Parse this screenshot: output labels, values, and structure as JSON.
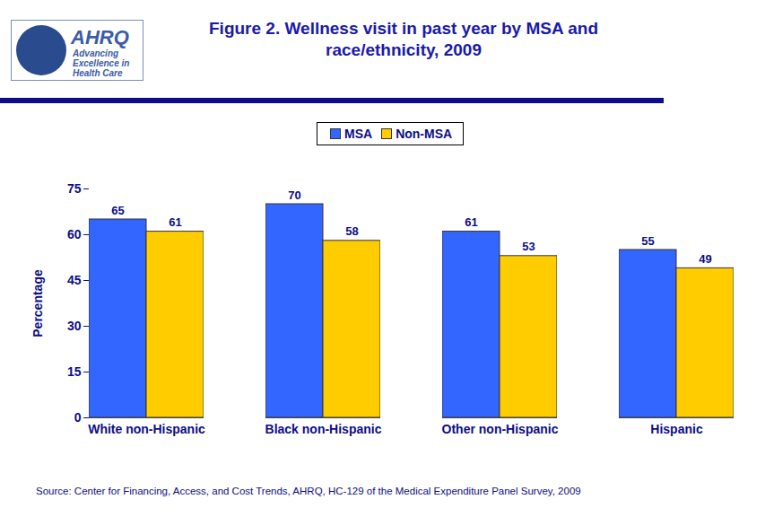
{
  "chart_data": {
    "type": "bar",
    "title": "Figure 2. Wellness visit in past year by MSA and race/ethnicity, 2009",
    "annotations": [
      "AHRQ",
      "Advancing Excellence in Health Care"
    ],
    "source": "Source: Center for Financing, Access, and Cost Trends, AHRQ, HC-129 of the Medical Expenditure Panel Survey,  2009",
    "categories": [
      "White non-Hispanic",
      "Black non-Hispanic",
      "Other non-Hispanic",
      "Hispanic"
    ],
    "series": [
      {
        "name": "MSA",
        "color": "#3366ff",
        "values": [
          65,
          70,
          61,
          55
        ]
      },
      {
        "name": "Non-MSA",
        "color": "#ffcc00",
        "values": [
          61,
          58,
          53,
          49
        ]
      }
    ],
    "y_label": "Percentage",
    "ylim": [
      0,
      75
    ],
    "yticks": [
      0,
      15,
      30,
      45,
      60,
      75
    ],
    "data_labels": true,
    "legend": "top",
    "grid": false
  }
}
